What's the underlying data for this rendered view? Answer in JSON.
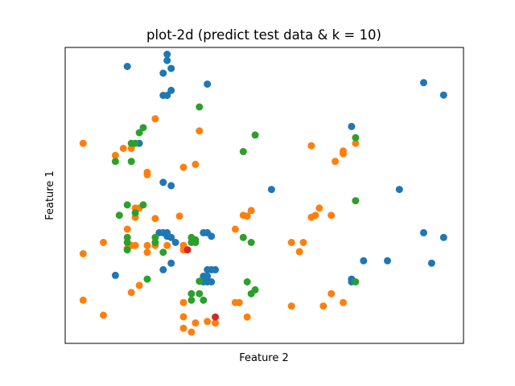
{
  "chart_data": {
    "type": "scatter",
    "title": "plot-2d (predict test data & k = 10)",
    "xlabel": "Feature 2",
    "ylabel": "Feature 1",
    "xlim": [
      0,
      100
    ],
    "ylim": [
      0,
      100
    ],
    "xticks": "hidden",
    "yticks": "hidden",
    "grid": false,
    "legend": "none",
    "series": [
      {
        "color": "#1f77b4",
        "points": [
          [
            15.6,
            93.6
          ],
          [
            25.6,
            95.6
          ],
          [
            25.6,
            97.7
          ],
          [
            26.6,
            92.9
          ],
          [
            24.6,
            91.3
          ],
          [
            26.6,
            85.5
          ],
          [
            24.6,
            83.8
          ],
          [
            25.6,
            83.8
          ],
          [
            35.7,
            87.6
          ],
          [
            18.6,
            67.6
          ],
          [
            24.6,
            54.4
          ],
          [
            26.6,
            53.3
          ],
          [
            23.6,
            37.4
          ],
          [
            24.6,
            37.4
          ],
          [
            25.6,
            37.4
          ],
          [
            26.6,
            35.8
          ],
          [
            27.7,
            34.1
          ],
          [
            34.7,
            37.4
          ],
          [
            35.7,
            37.4
          ],
          [
            36.7,
            36.2
          ],
          [
            35.7,
            24.9
          ],
          [
            36.7,
            24.9
          ],
          [
            37.7,
            24.9
          ],
          [
            34.7,
            22.7
          ],
          [
            35.7,
            22.7
          ],
          [
            34.7,
            20.8
          ],
          [
            35.7,
            20.8
          ],
          [
            36.7,
            20.8
          ],
          [
            24.6,
            24.9
          ],
          [
            26.6,
            27.1
          ],
          [
            12.6,
            23.0
          ],
          [
            25.6,
            36.2
          ],
          [
            51.8,
            52.0
          ],
          [
            71.9,
            73.3
          ],
          [
            83.9,
            52.0
          ],
          [
            90.0,
            88.1
          ],
          [
            95.0,
            83.9
          ],
          [
            90.0,
            37.4
          ],
          [
            95.0,
            35.8
          ],
          [
            80.9,
            27.9
          ],
          [
            92.0,
            27.1
          ],
          [
            74.9,
            27.9
          ],
          [
            71.9,
            20.8
          ],
          [
            71.9,
            21.7
          ]
        ]
      },
      {
        "color": "#ff7f0e",
        "points": [
          [
            4.5,
            67.6
          ],
          [
            12.6,
            63.5
          ],
          [
            14.6,
            65.9
          ],
          [
            22.6,
            75.9
          ],
          [
            16.6,
            65.9
          ],
          [
            20.6,
            57.8
          ],
          [
            20.6,
            57.0
          ],
          [
            29.7,
            59.5
          ],
          [
            32.7,
            60.5
          ],
          [
            33.7,
            71.8
          ],
          [
            28.7,
            43.0
          ],
          [
            22.6,
            42.2
          ],
          [
            18.6,
            45.7
          ],
          [
            17.6,
            45.7
          ],
          [
            17.6,
            42.6
          ],
          [
            15.6,
            38.6
          ],
          [
            9.6,
            34.1
          ],
          [
            15.6,
            32.1
          ],
          [
            16.6,
            33.1
          ],
          [
            17.6,
            33.1
          ],
          [
            20.6,
            30.8
          ],
          [
            20.6,
            33.1
          ],
          [
            22.6,
            33.1
          ],
          [
            25.6,
            33.1
          ],
          [
            29.7,
            33.1
          ],
          [
            32.7,
            34.1
          ],
          [
            29.7,
            31.6
          ],
          [
            30.7,
            31.6
          ],
          [
            4.5,
            30.3
          ],
          [
            4.5,
            14.6
          ],
          [
            9.6,
            9.5
          ],
          [
            16.6,
            17.2
          ],
          [
            18.6,
            19.6
          ],
          [
            29.7,
            13.8
          ],
          [
            29.7,
            9.0
          ],
          [
            29.7,
            5.1
          ],
          [
            31.7,
            3.8
          ],
          [
            37.7,
            6.9
          ],
          [
            42.7,
            13.8
          ],
          [
            43.7,
            13.8
          ],
          [
            45.7,
            8.9
          ],
          [
            42.7,
            38.6
          ],
          [
            44.7,
            43.3
          ],
          [
            45.7,
            43.0
          ],
          [
            46.7,
            44.9
          ],
          [
            56.8,
            34.1
          ],
          [
            58.8,
            31.0
          ],
          [
            59.8,
            34.1
          ],
          [
            61.8,
            42.6
          ],
          [
            62.8,
            43.3
          ],
          [
            63.8,
            45.7
          ],
          [
            66.8,
            43.3
          ],
          [
            61.8,
            66.8
          ],
          [
            67.8,
            61.5
          ],
          [
            69.8,
            64.1
          ],
          [
            69.8,
            65.0
          ],
          [
            72.9,
            67.6
          ],
          [
            56.8,
            12.6
          ],
          [
            64.8,
            12.6
          ],
          [
            66.8,
            16.8
          ],
          [
            69.8,
            13.8
          ],
          [
            32.7,
            6.9
          ],
          [
            35.7,
            7.4
          ]
        ]
      },
      {
        "color": "#2ca02c",
        "points": [
          [
            33.7,
            79.9
          ],
          [
            19.6,
            72.9
          ],
          [
            18.6,
            71.2
          ],
          [
            17.6,
            67.6
          ],
          [
            16.6,
            67.6
          ],
          [
            12.6,
            61.5
          ],
          [
            16.6,
            61.5
          ],
          [
            47.7,
            70.4
          ],
          [
            44.7,
            64.8
          ],
          [
            15.6,
            46.8
          ],
          [
            19.6,
            46.8
          ],
          [
            13.6,
            43.3
          ],
          [
            17.6,
            44.1
          ],
          [
            15.6,
            35.8
          ],
          [
            15.6,
            34.1
          ],
          [
            15.6,
            31.6
          ],
          [
            22.6,
            35.8
          ],
          [
            22.6,
            34.1
          ],
          [
            24.6,
            30.8
          ],
          [
            31.7,
            34.1
          ],
          [
            32.7,
            34.1
          ],
          [
            31.7,
            35.8
          ],
          [
            32.7,
            35.0
          ],
          [
            20.6,
            21.7
          ],
          [
            33.7,
            21.0
          ],
          [
            31.7,
            16.8
          ],
          [
            33.7,
            16.8
          ],
          [
            31.7,
            14.6
          ],
          [
            34.7,
            14.6
          ],
          [
            45.7,
            20.8
          ],
          [
            47.7,
            18.1
          ],
          [
            46.7,
            16.8
          ],
          [
            44.7,
            35.8
          ],
          [
            46.7,
            34.1
          ],
          [
            72.9,
            69.5
          ],
          [
            72.9,
            48.2
          ],
          [
            72.9,
            20.8
          ]
        ]
      },
      {
        "color": "#d62728",
        "points": [
          [
            30.7,
            31.6
          ],
          [
            37.7,
            8.9
          ]
        ]
      }
    ]
  }
}
